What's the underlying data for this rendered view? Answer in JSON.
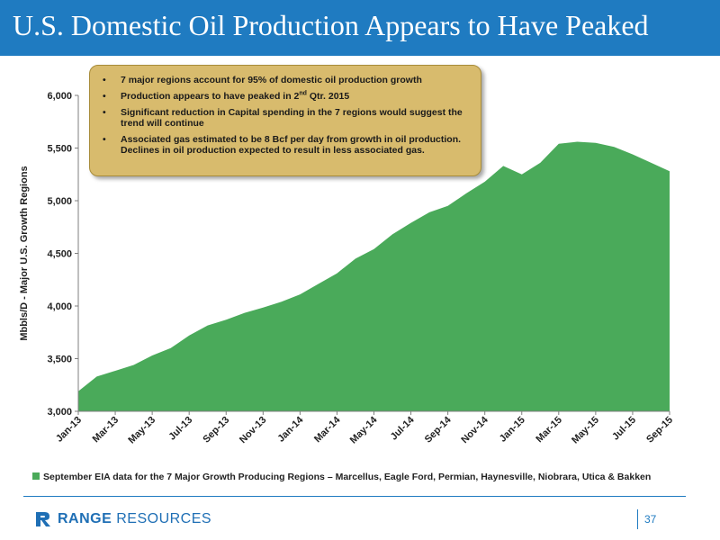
{
  "header": {
    "title": "U.S. Domestic Oil Production Appears to Have Peaked"
  },
  "callout": {
    "bullets": [
      {
        "text": "7 major regions account for 95% of domestic oil production growth"
      },
      {
        "pre": "Production appears to have peaked in 2",
        "sup": "nd",
        "post": " Qtr. 2015"
      },
      {
        "text": "Significant reduction in Capital spending in the 7 regions would suggest the trend will continue"
      },
      {
        "text": "Associated gas estimated to be 8 Bcf per day from growth in oil production. Declines in oil production expected to result in less associated gas."
      }
    ]
  },
  "legend": {
    "label": "September EIA data for the 7 Major Growth Producing Regions – Marcellus, Eagle Ford, Permian, Haynesville, Niobrara, Utica & Bakken"
  },
  "footer": {
    "company_bold": "RANGE",
    "company_rest": " RESOURCES",
    "page_number": "37"
  },
  "colors": {
    "area": "#4aaa5a",
    "title_bar": "#1f7bc1",
    "callout": "#d8bb6d"
  },
  "chart_data": {
    "type": "area",
    "title": "",
    "xlabel": "",
    "ylabel": "Mbbls/D - Major U.S. Growth Regions",
    "ylim": [
      3000,
      6000
    ],
    "yticks": [
      3000,
      3500,
      4000,
      4500,
      5000,
      5500,
      6000
    ],
    "ytick_labels": [
      "3,000",
      "3,500",
      "4,000",
      "4,500",
      "5,000",
      "5,500",
      "6,000"
    ],
    "xtick_labels": [
      "Jan-13",
      "Mar-13",
      "May-13",
      "Jul-13",
      "Sep-13",
      "Nov-13",
      "Jan-14",
      "Mar-14",
      "May-14",
      "Jul-14",
      "Sep-14",
      "Nov-14",
      "Jan-15",
      "Mar-15",
      "May-15",
      "Jul-15",
      "Sep-15"
    ],
    "grid": false,
    "legend_position": "bottom",
    "series": [
      {
        "name": "September EIA data for the 7 Major Growth Producing Regions – Marcellus, Eagle Ford, Permian, Haynesville, Niobrara, Utica & Bakken",
        "x": [
          "Jan-13",
          "Feb-13",
          "Mar-13",
          "Apr-13",
          "May-13",
          "Jun-13",
          "Jul-13",
          "Aug-13",
          "Sep-13",
          "Oct-13",
          "Nov-13",
          "Dec-13",
          "Jan-14",
          "Feb-14",
          "Mar-14",
          "Apr-14",
          "May-14",
          "Jun-14",
          "Jul-14",
          "Aug-14",
          "Sep-14",
          "Oct-14",
          "Nov-14",
          "Dec-14",
          "Jan-15",
          "Feb-15",
          "Mar-15",
          "Apr-15",
          "May-15",
          "Jun-15",
          "Jul-15",
          "Aug-15",
          "Sep-15"
        ],
        "values": [
          3190,
          3330,
          3385,
          3440,
          3530,
          3600,
          3720,
          3815,
          3870,
          3935,
          3985,
          4040,
          4110,
          4210,
          4310,
          4450,
          4540,
          4680,
          4790,
          4890,
          4950,
          5070,
          5180,
          5330,
          5250,
          5360,
          5540,
          5560,
          5550,
          5510,
          5440,
          5360,
          5280
        ]
      }
    ]
  }
}
